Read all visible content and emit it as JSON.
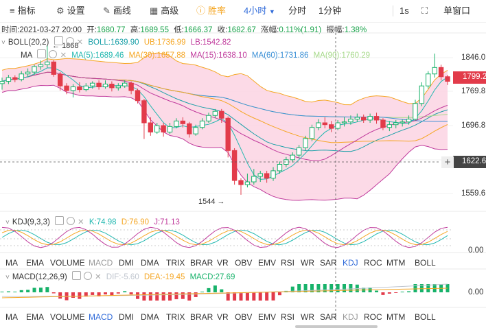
{
  "toolbar": {
    "indicators": "指标",
    "settings": "设置",
    "draw": "画线",
    "advanced": "高级",
    "winrate": "胜率",
    "interval": "4小时",
    "minute": "分时",
    "one_minute": "1分钟",
    "one_second": "1s",
    "single_window": "单窗口"
  },
  "info_bar": {
    "time_label": "时间:",
    "time": "2021-03-27 20:00",
    "open_label": "开:",
    "open": "1680.77",
    "high_label": "高:",
    "high": "1689.55",
    "low_label": "低:",
    "low": "1666.37",
    "close_label": "收:",
    "close": "1682.67",
    "change_label": "涨幅:",
    "change": "0.11%(1.91)",
    "amp_label": "振幅:",
    "amp": "1.38%"
  },
  "boll_legend": {
    "name": "BOLL(20,2)",
    "boll": "BOLL:1639.90",
    "ub": "UB:1736.99",
    "lb": "LB:1542.82",
    "colors": {
      "boll": "#1aa0a8",
      "ub": "#f5a623",
      "lb": "#c03a9c"
    }
  },
  "ma_legend": {
    "name": "MA",
    "ma5": "MA(5):1689.46",
    "ma30": "MA(30):1657.88",
    "ma15": "MA(15):1638.10",
    "ma60": "MA(60):1731.86",
    "ma90": "MA(90):1760.29",
    "colors": {
      "ma5": "#22b8b0",
      "ma30": "#f5a623",
      "ma15": "#c03a9c",
      "ma60": "#3a8fd6",
      "ma90": "#a6d98a"
    }
  },
  "price_axis": {
    "labels": [
      "1846.0",
      "1769.8",
      "1696.8",
      "1622.6",
      "1559.6"
    ],
    "current": "1799.2",
    "current_color": "#e23b4a"
  },
  "annotations": {
    "high_mark": "1868",
    "low_mark": "1544"
  },
  "kdj_legend": {
    "name": "KDJ(9,3,3)",
    "k": "K:74.98",
    "d": "D:76.90",
    "j": "J:71.13",
    "colors": {
      "k": "#22b8b0",
      "d": "#f5a623",
      "j": "#c03a9c"
    },
    "axis": "0.00"
  },
  "indicator_tabs_1": [
    "MA",
    "EMA",
    "VOLUME",
    "MACD",
    "DMI",
    "DMA",
    "TRIX",
    "BRAR",
    "VR",
    "OBV",
    "EMV",
    "RSI",
    "WR",
    "SAR",
    "KDJ",
    "ROC",
    "MTM",
    "BOLL"
  ],
  "macd_legend": {
    "name": "MACD(12,26,9)",
    "dif": "DIF:-5.60",
    "dea": "DEA:-19.45",
    "macd": "MACD:27.69",
    "colors": {
      "dif": "#bfc5ce",
      "dea": "#f5a623",
      "macd": "#17b26a"
    },
    "axis": "0.00"
  },
  "indicator_tabs_2": [
    "MA",
    "EMA",
    "VOLUME",
    "MACD",
    "DMI",
    "DMA",
    "TRIX",
    "BRAR",
    "VR",
    "OBV",
    "EMV",
    "RSI",
    "WR",
    "SAR",
    "KDJ",
    "ROC",
    "MTM",
    "BOLL"
  ],
  "colors": {
    "up": "#17b26a",
    "down": "#e23b4a",
    "boll_fill": "#fbd3e3"
  },
  "chart_data": {
    "type": "candlestick",
    "y_range": [
      1520,
      1880
    ],
    "candles": [
      [
        1785,
        1790,
        1772,
        1798
      ],
      [
        1790,
        1798,
        1784,
        1804
      ],
      [
        1798,
        1794,
        1788,
        1803
      ],
      [
        1794,
        1806,
        1790,
        1812
      ],
      [
        1806,
        1810,
        1800,
        1818
      ],
      [
        1810,
        1822,
        1804,
        1826
      ],
      [
        1822,
        1826,
        1815,
        1835
      ],
      [
        1826,
        1832,
        1820,
        1868
      ],
      [
        1832,
        1805,
        1800,
        1836
      ],
      [
        1805,
        1780,
        1770,
        1810
      ],
      [
        1780,
        1770,
        1762,
        1786
      ],
      [
        1770,
        1778,
        1755,
        1784
      ],
      [
        1778,
        1772,
        1766,
        1788
      ],
      [
        1772,
        1780,
        1768,
        1786
      ],
      [
        1780,
        1786,
        1774,
        1790
      ],
      [
        1786,
        1778,
        1772,
        1792
      ],
      [
        1778,
        1784,
        1774,
        1792
      ],
      [
        1784,
        1776,
        1768,
        1790
      ],
      [
        1776,
        1780,
        1770,
        1786
      ],
      [
        1780,
        1786,
        1776,
        1792
      ],
      [
        1786,
        1770,
        1762,
        1790
      ],
      [
        1770,
        1748,
        1742,
        1774
      ],
      [
        1748,
        1700,
        1665,
        1752
      ],
      [
        1700,
        1680,
        1672,
        1712
      ],
      [
        1680,
        1694,
        1676,
        1700
      ],
      [
        1694,
        1680,
        1670,
        1700
      ],
      [
        1680,
        1692,
        1676,
        1700
      ],
      [
        1692,
        1704,
        1688,
        1710
      ],
      [
        1704,
        1698,
        1690,
        1712
      ],
      [
        1698,
        1676,
        1668,
        1702
      ],
      [
        1676,
        1690,
        1672,
        1696
      ],
      [
        1690,
        1704,
        1686,
        1710
      ],
      [
        1704,
        1716,
        1700,
        1722
      ],
      [
        1716,
        1725,
        1710,
        1730
      ],
      [
        1725,
        1710,
        1700,
        1730
      ],
      [
        1710,
        1640,
        1625,
        1714
      ],
      [
        1640,
        1575,
        1566,
        1645
      ],
      [
        1575,
        1566,
        1544,
        1580
      ],
      [
        1566,
        1572,
        1560,
        1590
      ],
      [
        1572,
        1584,
        1566,
        1600
      ],
      [
        1584,
        1590,
        1572,
        1596
      ],
      [
        1590,
        1580,
        1570,
        1596
      ],
      [
        1580,
        1596,
        1574,
        1604
      ],
      [
        1596,
        1610,
        1590,
        1616
      ],
      [
        1610,
        1620,
        1604,
        1626
      ],
      [
        1620,
        1630,
        1614,
        1636
      ],
      [
        1630,
        1646,
        1624,
        1652
      ],
      [
        1646,
        1666,
        1640,
        1672
      ],
      [
        1666,
        1690,
        1660,
        1696
      ],
      [
        1690,
        1700,
        1684,
        1708
      ],
      [
        1700,
        1696,
        1688,
        1712
      ],
      [
        1696,
        1688,
        1680,
        1704
      ],
      [
        1688,
        1700,
        1684,
        1706
      ],
      [
        1700,
        1702,
        1692,
        1712
      ],
      [
        1702,
        1708,
        1696,
        1716
      ],
      [
        1708,
        1712,
        1702,
        1720
      ],
      [
        1712,
        1706,
        1700,
        1718
      ],
      [
        1706,
        1714,
        1700,
        1720
      ],
      [
        1714,
        1706,
        1698,
        1722
      ],
      [
        1706,
        1690,
        1684,
        1710
      ],
      [
        1690,
        1696,
        1682,
        1704
      ],
      [
        1696,
        1700,
        1688,
        1706
      ],
      [
        1700,
        1702,
        1692,
        1708
      ],
      [
        1702,
        1708,
        1696,
        1716
      ],
      [
        1708,
        1742,
        1704,
        1750
      ],
      [
        1742,
        1780,
        1736,
        1788
      ],
      [
        1780,
        1806,
        1774,
        1812
      ],
      [
        1806,
        1820,
        1798,
        1850
      ],
      [
        1820,
        1800,
        1792,
        1826
      ],
      [
        1800,
        1790,
        1782,
        1804
      ]
    ]
  }
}
